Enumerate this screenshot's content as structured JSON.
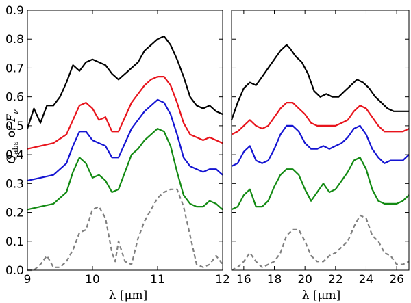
{
  "chart_data": [
    {
      "type": "line",
      "panel": "left",
      "xlabel": "λ [μm]",
      "ylabel": "Q_abs or F_ν",
      "ylabel_main": "Q",
      "ylabel_sub": "abs",
      "ylabel_or": " or ",
      "ylabel_main2": "F",
      "ylabel_sub2": "ν",
      "xlim": [
        9,
        12
      ],
      "ylim": [
        0,
        0.9
      ],
      "xticks": [
        9,
        10,
        11,
        12
      ],
      "yticks": [
        0.0,
        0.1,
        0.2,
        0.3,
        0.4,
        0.5,
        0.6,
        0.7,
        0.8,
        0.9
      ],
      "ytick_labels": [
        "0.0",
        "0.1",
        "0.2",
        "0.3",
        "0.4",
        "0.5",
        "0.6",
        "0.7",
        "0.8",
        "0.9"
      ],
      "grid": false,
      "series": [
        {
          "color": "#000000",
          "style": "solid",
          "x": [
            9.0,
            9.1,
            9.2,
            9.3,
            9.4,
            9.5,
            9.6,
            9.7,
            9.8,
            9.9,
            10.0,
            10.1,
            10.2,
            10.3,
            10.4,
            10.5,
            10.6,
            10.7,
            10.8,
            10.9,
            11.0,
            11.1,
            11.2,
            11.3,
            11.4,
            11.5,
            11.6,
            11.7,
            11.8,
            11.9,
            12.0
          ],
          "y": [
            0.49,
            0.56,
            0.51,
            0.57,
            0.57,
            0.6,
            0.65,
            0.71,
            0.69,
            0.72,
            0.73,
            0.72,
            0.71,
            0.68,
            0.66,
            0.68,
            0.7,
            0.72,
            0.76,
            0.78,
            0.8,
            0.81,
            0.78,
            0.73,
            0.67,
            0.6,
            0.57,
            0.56,
            0.57,
            0.55,
            0.54
          ]
        },
        {
          "color": "#e8141c",
          "style": "solid",
          "x": [
            9.0,
            9.2,
            9.4,
            9.6,
            9.7,
            9.8,
            9.9,
            10.0,
            10.1,
            10.2,
            10.3,
            10.4,
            10.5,
            10.6,
            10.7,
            10.8,
            10.9,
            11.0,
            11.1,
            11.2,
            11.3,
            11.4,
            11.5,
            11.6,
            11.7,
            11.8,
            11.9,
            12.0
          ],
          "y": [
            0.42,
            0.43,
            0.44,
            0.47,
            0.52,
            0.57,
            0.58,
            0.56,
            0.52,
            0.53,
            0.48,
            0.48,
            0.53,
            0.58,
            0.61,
            0.64,
            0.66,
            0.67,
            0.67,
            0.64,
            0.58,
            0.51,
            0.47,
            0.46,
            0.45,
            0.46,
            0.45,
            0.44
          ]
        },
        {
          "color": "#1414d2",
          "style": "solid",
          "x": [
            9.0,
            9.2,
            9.4,
            9.6,
            9.7,
            9.8,
            9.9,
            10.0,
            10.1,
            10.2,
            10.3,
            10.4,
            10.5,
            10.6,
            10.7,
            10.8,
            10.9,
            11.0,
            11.1,
            11.2,
            11.3,
            11.4,
            11.5,
            11.6,
            11.7,
            11.8,
            11.9,
            12.0
          ],
          "y": [
            0.31,
            0.32,
            0.33,
            0.37,
            0.43,
            0.48,
            0.48,
            0.45,
            0.44,
            0.43,
            0.39,
            0.39,
            0.44,
            0.49,
            0.52,
            0.55,
            0.57,
            0.59,
            0.58,
            0.54,
            0.47,
            0.39,
            0.36,
            0.35,
            0.34,
            0.35,
            0.35,
            0.33
          ]
        },
        {
          "color": "#138a13",
          "style": "solid",
          "x": [
            9.0,
            9.2,
            9.4,
            9.6,
            9.7,
            9.8,
            9.9,
            10.0,
            10.1,
            10.2,
            10.3,
            10.4,
            10.5,
            10.6,
            10.7,
            10.8,
            10.9,
            11.0,
            11.1,
            11.2,
            11.3,
            11.4,
            11.5,
            11.6,
            11.7,
            11.8,
            11.9,
            12.0
          ],
          "y": [
            0.21,
            0.22,
            0.23,
            0.27,
            0.34,
            0.39,
            0.37,
            0.32,
            0.33,
            0.31,
            0.27,
            0.28,
            0.34,
            0.4,
            0.42,
            0.45,
            0.47,
            0.49,
            0.48,
            0.43,
            0.34,
            0.26,
            0.23,
            0.22,
            0.22,
            0.24,
            0.23,
            0.21
          ]
        },
        {
          "color": "#808080",
          "style": "dashed",
          "x": [
            9.0,
            9.1,
            9.2,
            9.3,
            9.4,
            9.5,
            9.6,
            9.7,
            9.8,
            9.9,
            10.0,
            10.1,
            10.2,
            10.3,
            10.35,
            10.4,
            10.5,
            10.6,
            10.7,
            10.8,
            10.9,
            11.0,
            11.1,
            11.2,
            11.3,
            11.4,
            11.5,
            11.6,
            11.7,
            11.8,
            11.9,
            12.0
          ],
          "y": [
            0.0,
            0.0,
            0.02,
            0.05,
            0.01,
            0.01,
            0.03,
            0.07,
            0.13,
            0.14,
            0.21,
            0.22,
            0.18,
            0.06,
            0.03,
            0.1,
            0.03,
            0.02,
            0.11,
            0.17,
            0.21,
            0.25,
            0.27,
            0.28,
            0.28,
            0.22,
            0.12,
            0.02,
            0.01,
            0.02,
            0.05,
            0.02
          ]
        }
      ]
    },
    {
      "type": "line",
      "panel": "right",
      "xlabel": "λ [μm]",
      "xlim": [
        15.2,
        26.8
      ],
      "ylim": [
        0,
        0.9
      ],
      "xticks": [
        16,
        18,
        20,
        22,
        24,
        26
      ],
      "grid": false,
      "series": [
        {
          "color": "#000000",
          "style": "solid",
          "x": [
            15.2,
            15.6,
            16.0,
            16.4,
            16.8,
            17.2,
            17.6,
            18.0,
            18.4,
            18.8,
            19.0,
            19.4,
            19.8,
            20.2,
            20.6,
            21.0,
            21.4,
            21.8,
            22.2,
            22.6,
            23.0,
            23.4,
            23.8,
            24.2,
            24.6,
            25.0,
            25.4,
            25.8,
            26.2,
            26.8
          ],
          "y": [
            0.52,
            0.58,
            0.63,
            0.65,
            0.64,
            0.67,
            0.7,
            0.73,
            0.76,
            0.78,
            0.77,
            0.74,
            0.72,
            0.68,
            0.62,
            0.6,
            0.61,
            0.6,
            0.6,
            0.62,
            0.64,
            0.66,
            0.65,
            0.63,
            0.6,
            0.58,
            0.56,
            0.55,
            0.55,
            0.55
          ]
        },
        {
          "color": "#e8141c",
          "style": "solid",
          "x": [
            15.2,
            15.6,
            16.0,
            16.4,
            16.8,
            17.2,
            17.6,
            18.0,
            18.4,
            18.8,
            19.2,
            19.6,
            20.0,
            20.4,
            20.8,
            21.2,
            21.6,
            22.0,
            22.4,
            22.8,
            23.2,
            23.6,
            24.0,
            24.4,
            24.8,
            25.2,
            25.6,
            26.0,
            26.4,
            26.8
          ],
          "y": [
            0.47,
            0.48,
            0.5,
            0.52,
            0.5,
            0.49,
            0.5,
            0.53,
            0.56,
            0.58,
            0.58,
            0.56,
            0.54,
            0.51,
            0.5,
            0.5,
            0.5,
            0.5,
            0.51,
            0.52,
            0.55,
            0.57,
            0.56,
            0.53,
            0.5,
            0.48,
            0.48,
            0.48,
            0.48,
            0.49
          ]
        },
        {
          "color": "#1414d2",
          "style": "solid",
          "x": [
            15.2,
            15.6,
            16.0,
            16.4,
            16.8,
            17.2,
            17.6,
            18.0,
            18.4,
            18.8,
            19.2,
            19.6,
            20.0,
            20.4,
            20.8,
            21.2,
            21.6,
            22.0,
            22.4,
            22.8,
            23.2,
            23.6,
            24.0,
            24.4,
            24.8,
            25.2,
            25.6,
            26.0,
            26.4,
            26.8
          ],
          "y": [
            0.36,
            0.37,
            0.41,
            0.43,
            0.38,
            0.37,
            0.38,
            0.42,
            0.47,
            0.5,
            0.5,
            0.48,
            0.44,
            0.42,
            0.42,
            0.43,
            0.42,
            0.43,
            0.44,
            0.46,
            0.49,
            0.5,
            0.47,
            0.42,
            0.39,
            0.37,
            0.38,
            0.38,
            0.38,
            0.4
          ]
        },
        {
          "color": "#138a13",
          "style": "solid",
          "x": [
            15.2,
            15.6,
            16.0,
            16.4,
            16.8,
            17.2,
            17.6,
            18.0,
            18.4,
            18.8,
            19.2,
            19.6,
            20.0,
            20.4,
            20.8,
            21.2,
            21.6,
            22.0,
            22.4,
            22.8,
            23.2,
            23.6,
            24.0,
            24.4,
            24.8,
            25.2,
            25.6,
            26.0,
            26.4,
            26.8
          ],
          "y": [
            0.21,
            0.22,
            0.26,
            0.28,
            0.22,
            0.22,
            0.24,
            0.29,
            0.33,
            0.35,
            0.35,
            0.33,
            0.28,
            0.24,
            0.27,
            0.3,
            0.27,
            0.28,
            0.31,
            0.34,
            0.38,
            0.39,
            0.35,
            0.28,
            0.24,
            0.23,
            0.23,
            0.23,
            0.24,
            0.26
          ]
        },
        {
          "color": "#808080",
          "style": "dashed",
          "x": [
            15.2,
            15.6,
            16.0,
            16.4,
            16.8,
            17.2,
            17.6,
            18.0,
            18.4,
            18.8,
            19.2,
            19.6,
            20.0,
            20.4,
            20.8,
            21.2,
            21.6,
            22.0,
            22.4,
            22.8,
            23.2,
            23.6,
            24.0,
            24.4,
            24.8,
            25.2,
            25.6,
            26.0,
            26.4,
            26.8
          ],
          "y": [
            0.0,
            0.01,
            0.03,
            0.06,
            0.03,
            0.01,
            0.02,
            0.03,
            0.06,
            0.12,
            0.14,
            0.14,
            0.1,
            0.05,
            0.03,
            0.03,
            0.05,
            0.06,
            0.08,
            0.1,
            0.15,
            0.19,
            0.18,
            0.12,
            0.1,
            0.06,
            0.05,
            0.02,
            0.02,
            0.03
          ]
        }
      ]
    }
  ]
}
